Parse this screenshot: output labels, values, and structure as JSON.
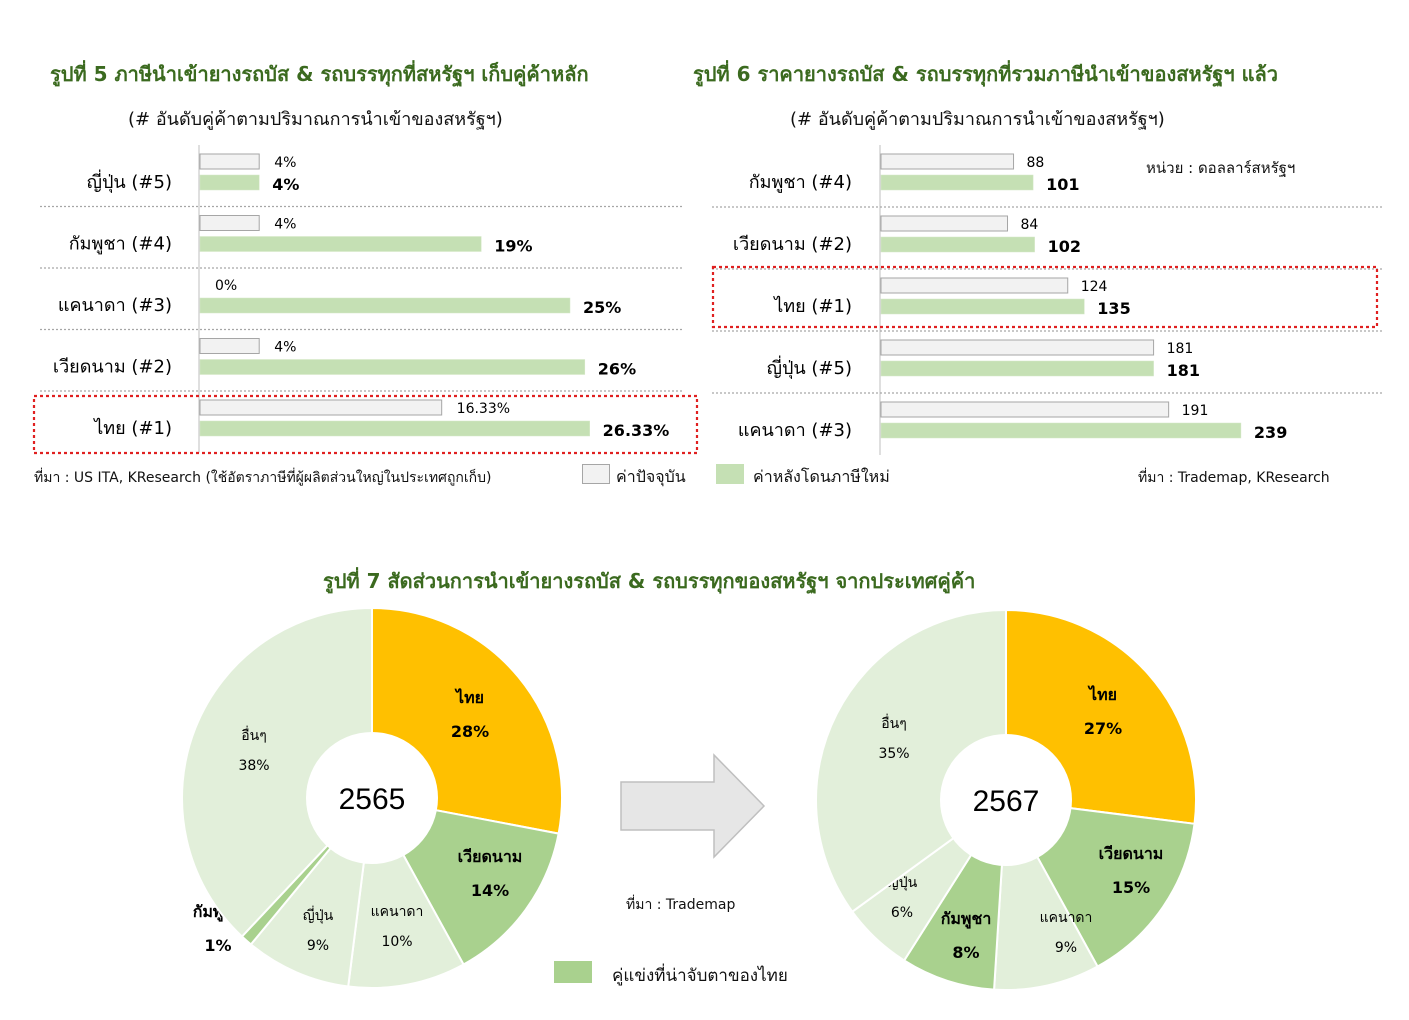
{
  "fig5": {
    "title": "รูปที่ 5 ภาษีนำเข้ายางรถบัส & รถบรรทุกที่สหรัฐฯ เก็บคู่ค้าหลัก",
    "subtitle": "(# อันดับคู่ค้าตามปริมาณการนำเข้าของสหรัฐฯ)",
    "source": "ที่มา : US ITA, KResearch (ใช้อัตราภาษีที่ผู้ผลิตส่วนใหญ่ในประเทศถูกเก็บ)"
  },
  "fig6": {
    "title": "รูปที่ 6 ราคายางรถบัส & รถบรรทุกที่รวมภาษีนำเข้าของสหรัฐฯ แล้ว",
    "subtitle": "(# อันดับคู่ค้าตามปริมาณการนำเข้าของสหรัฐฯ)",
    "unit": "หน่วย : ดอลลาร์สหรัฐฯ",
    "source": "ที่มา : Trademap, KResearch"
  },
  "legend_bars": {
    "current": "ค่าปัจจุบัน",
    "after": "ค่าหลังโดนภาษีใหม่"
  },
  "fig7": {
    "title": "รูปที่ 7 สัดส่วนการนำเข้ายางรถบัส & รถบรรทุกของสหรัฐฯ จากประเทศคู่ค้า",
    "source": "ที่มา : Trademap",
    "legend": "คู่แข่งที่น่าจับตาของไทย"
  },
  "colors": {
    "title_green": "#3b6a1f",
    "bar_current_fill": "#f2f2f2",
    "bar_current_stroke": "#a6a6a6",
    "bar_after_fill": "#c5e0b4",
    "thailand": "#ffc000",
    "competitor": "#a9d18e",
    "other": "#e2efda",
    "highlight_border": "#e02020"
  },
  "chart_data": [
    {
      "type": "bar",
      "orientation": "horizontal",
      "title": "รูปที่ 5 ภาษีนำเข้ายางรถบัส & รถบรรทุกที่สหรัฐฯ เก็บคู่ค้าหลัก",
      "categories": [
        "ญี่ปุ่น (#5)",
        "กัมพูชา (#4)",
        "แคนาดา (#3)",
        "เวียดนาม (#2)",
        "ไทย (#1)"
      ],
      "series": [
        {
          "name": "ค่าปัจจุบัน",
          "values": [
            4,
            4,
            0,
            4,
            16.33
          ],
          "labels": [
            "4%",
            "4%",
            "0%",
            "4%",
            "16.33%"
          ]
        },
        {
          "name": "ค่าหลังโดนภาษีใหม่",
          "values": [
            4,
            19,
            25,
            26,
            26.33
          ],
          "labels": [
            "4%",
            "19%",
            "25%",
            "26%",
            "26.33%"
          ]
        }
      ],
      "highlight": "ไทย (#1)"
    },
    {
      "type": "bar",
      "orientation": "horizontal",
      "title": "รูปที่ 6 ราคายางรถบัส & รถบรรทุกที่รวมภาษีนำเข้าของสหรัฐฯ แล้ว",
      "categories": [
        "กัมพูชา (#4)",
        "เวียดนาม (#2)",
        "ไทย (#1)",
        "ญี่ปุ่น (#5)",
        "แคนาดา (#3)"
      ],
      "series": [
        {
          "name": "ค่าปัจจุบัน",
          "values": [
            88,
            84,
            124,
            181,
            191
          ],
          "labels": [
            "88",
            "84",
            "124",
            "181",
            "191"
          ]
        },
        {
          "name": "ค่าหลังโดนภาษีใหม่",
          "values": [
            101,
            102,
            135,
            181,
            239
          ],
          "labels": [
            "101",
            "102",
            "135",
            "181",
            "239"
          ]
        }
      ],
      "highlight": "ไทย (#1)"
    },
    {
      "type": "pie",
      "center_label": "2565",
      "slices": [
        {
          "label": "ไทย",
          "value": 28,
          "text": "28%",
          "group": "thailand"
        },
        {
          "label": "เวียดนาม",
          "value": 14,
          "text": "14%",
          "group": "competitor"
        },
        {
          "label": "แคนาดา",
          "value": 10,
          "text": "10%",
          "group": "other"
        },
        {
          "label": "ญี่ปุ่น",
          "value": 9,
          "text": "9%",
          "group": "other"
        },
        {
          "label": "กัมพูชา",
          "value": 1,
          "text": "1%",
          "group": "competitor"
        },
        {
          "label": "อื่นๆ",
          "value": 38,
          "text": "38%",
          "group": "other"
        }
      ]
    },
    {
      "type": "pie",
      "center_label": "2567",
      "slices": [
        {
          "label": "ไทย",
          "value": 27,
          "text": "27%",
          "group": "thailand"
        },
        {
          "label": "เวียดนาม",
          "value": 15,
          "text": "15%",
          "group": "competitor"
        },
        {
          "label": "แคนาดา",
          "value": 9,
          "text": "9%",
          "group": "other"
        },
        {
          "label": "กัมพูชา",
          "value": 8,
          "text": "8%",
          "group": "competitor"
        },
        {
          "label": "ญี่ปุ่น",
          "value": 6,
          "text": "6%",
          "group": "other"
        },
        {
          "label": "อื่นๆ",
          "value": 35,
          "text": "35%",
          "group": "other"
        }
      ]
    }
  ]
}
